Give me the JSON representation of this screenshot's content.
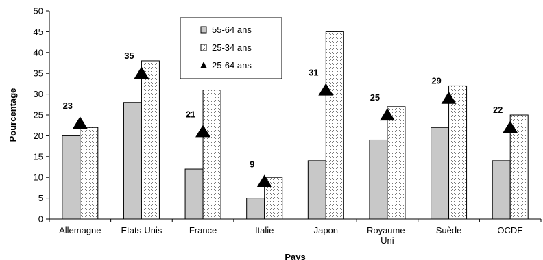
{
  "chart_data": {
    "type": "bar",
    "title": "",
    "xlabel": "Pays",
    "ylabel": "Pourcentage",
    "ylim": [
      0,
      50
    ],
    "yticks": [
      0,
      5,
      10,
      15,
      20,
      25,
      30,
      35,
      40,
      45,
      50
    ],
    "grid": false,
    "legend_position": "top-center",
    "categories": [
      "Allemagne",
      "Etats-Unis",
      "France",
      "Italie",
      "Japon",
      "Royaume-Uni",
      "Suède",
      "OCDE"
    ],
    "category_display": [
      [
        "Allemagne"
      ],
      [
        "Etats-Unis"
      ],
      [
        "France"
      ],
      [
        "Italie"
      ],
      [
        "Japon"
      ],
      [
        "Royaume-",
        "Uni"
      ],
      [
        "Suède"
      ],
      [
        "OCDE"
      ]
    ],
    "series": [
      {
        "name": "55-64 ans",
        "type": "bar",
        "color": "#c8c8c8",
        "pattern": "solid",
        "values": [
          20,
          28,
          12,
          5,
          14,
          19,
          22,
          14
        ]
      },
      {
        "name": "25-34 ans",
        "type": "bar",
        "color": "#ffffff",
        "pattern": "dotted",
        "values": [
          22,
          38,
          31,
          10,
          45,
          27,
          32,
          25
        ]
      },
      {
        "name": "25-64 ans",
        "type": "marker",
        "marker": "triangle",
        "color": "#000000",
        "values": [
          23,
          35,
          21,
          9,
          31,
          25,
          29,
          22
        ]
      }
    ]
  }
}
